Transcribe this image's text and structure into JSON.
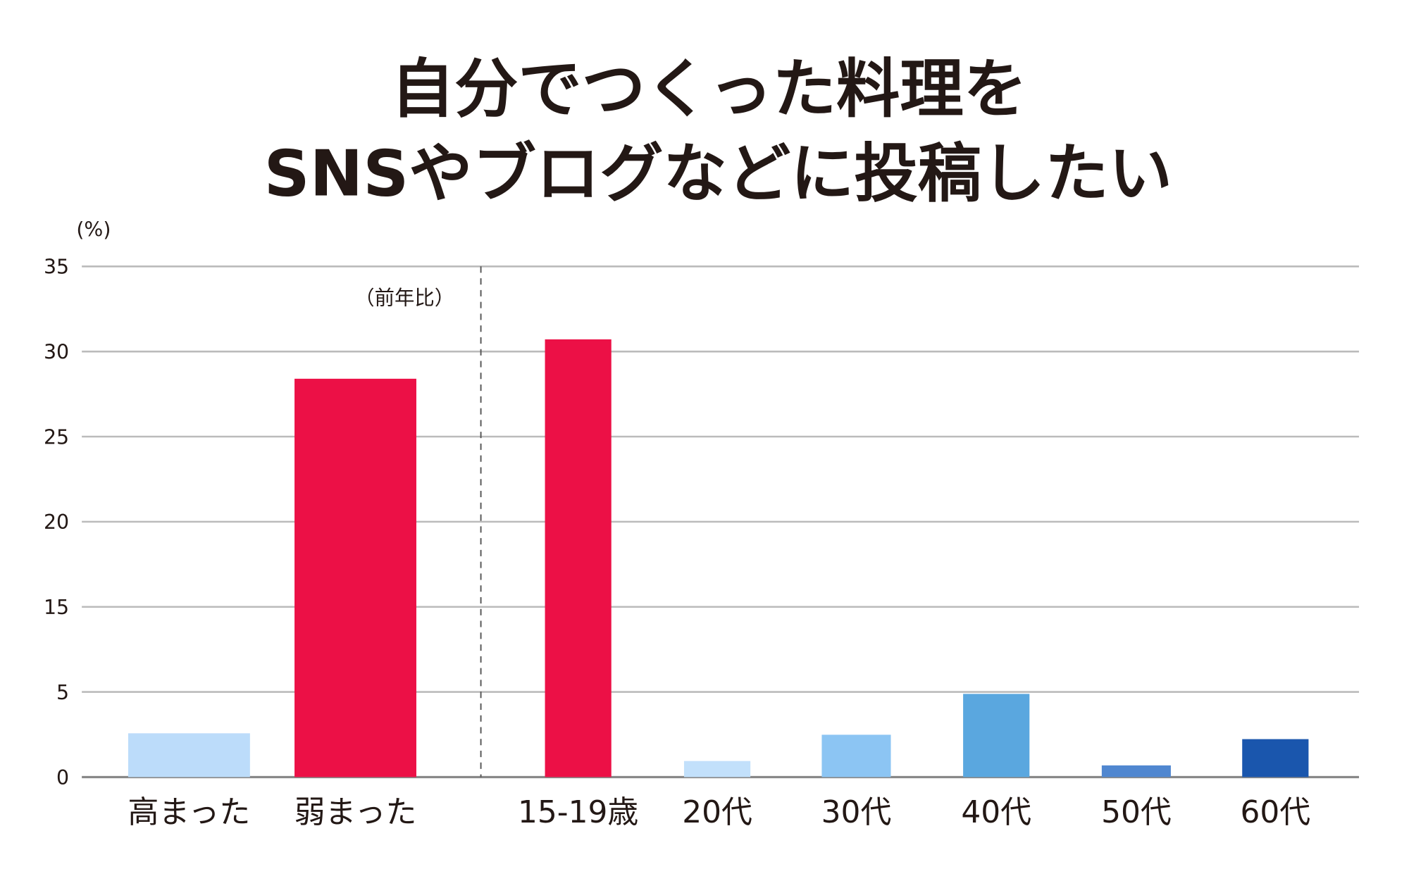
{
  "chart_data": {
    "type": "bar",
    "title": [
      "自分でつくった料理を",
      "SNSやブログなどに投稿したい"
    ],
    "ylabel": "(%)",
    "annotation": "（前年比）",
    "ylim": [
      0,
      35
    ],
    "y_tick_labels": [
      "0",
      "5",
      "15",
      "20",
      "25",
      "30",
      "35"
    ],
    "grid": true,
    "categories": [
      "高まった",
      "弱まった",
      "15-19歳",
      "20代",
      "30代",
      "40代",
      "50代",
      "60代"
    ],
    "values": [
      3.0,
      27.3,
      30.0,
      1.1,
      2.9,
      5.7,
      0.8,
      2.6
    ],
    "colors": [
      "#bcdcfa",
      "#ec1046",
      "#ec1046",
      "#c2e0fb",
      "#8cc5f3",
      "#5aa7df",
      "#5087d0",
      "#1a56ad"
    ],
    "groups_divider": "dashed line between 弱まった and 15-19歳"
  }
}
